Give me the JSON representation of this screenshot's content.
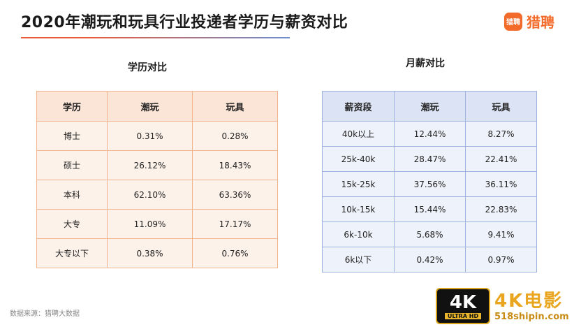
{
  "header": {
    "title": "2020年潮玩和玩具行业投递者学历与薪资对比",
    "logo_badge": "猎聘",
    "logo_text": "猎聘"
  },
  "education": {
    "title": "学历对比",
    "headers": [
      "学历",
      "潮玩",
      "玩具"
    ],
    "rows": [
      [
        "博士",
        "0.31%",
        "0.28%"
      ],
      [
        "硕士",
        "26.12%",
        "18.43%"
      ],
      [
        "本科",
        "62.10%",
        "63.36%"
      ],
      [
        "大专",
        "11.09%",
        "17.17%"
      ],
      [
        "大专以下",
        "0.38%",
        "0.76%"
      ]
    ]
  },
  "salary": {
    "title": "月薪对比",
    "headers": [
      "薪资段",
      "潮玩",
      "玩具"
    ],
    "rows": [
      [
        "40k以上",
        "12.44%",
        "8.27%"
      ],
      [
        "25k-40k",
        "28.47%",
        "22.41%"
      ],
      [
        "15k-25k",
        "37.56%",
        "36.11%"
      ],
      [
        "10k-15k",
        "15.44%",
        "22.83%"
      ],
      [
        "6k-10k",
        "5.68%",
        "9.41%"
      ],
      [
        "6k以下",
        "0.42%",
        "0.97%"
      ]
    ]
  },
  "footer": {
    "source": "数据来源：猎聘大数据"
  },
  "watermark": {
    "badge_main": "4K",
    "badge_sub": "ULTRA HD",
    "title": "4K电影",
    "site": "518shipin.com"
  },
  "colors": {
    "accent_orange": "#f26b2a",
    "edu_header": "#fbe5d6",
    "sal_header": "#dbe3f4"
  }
}
